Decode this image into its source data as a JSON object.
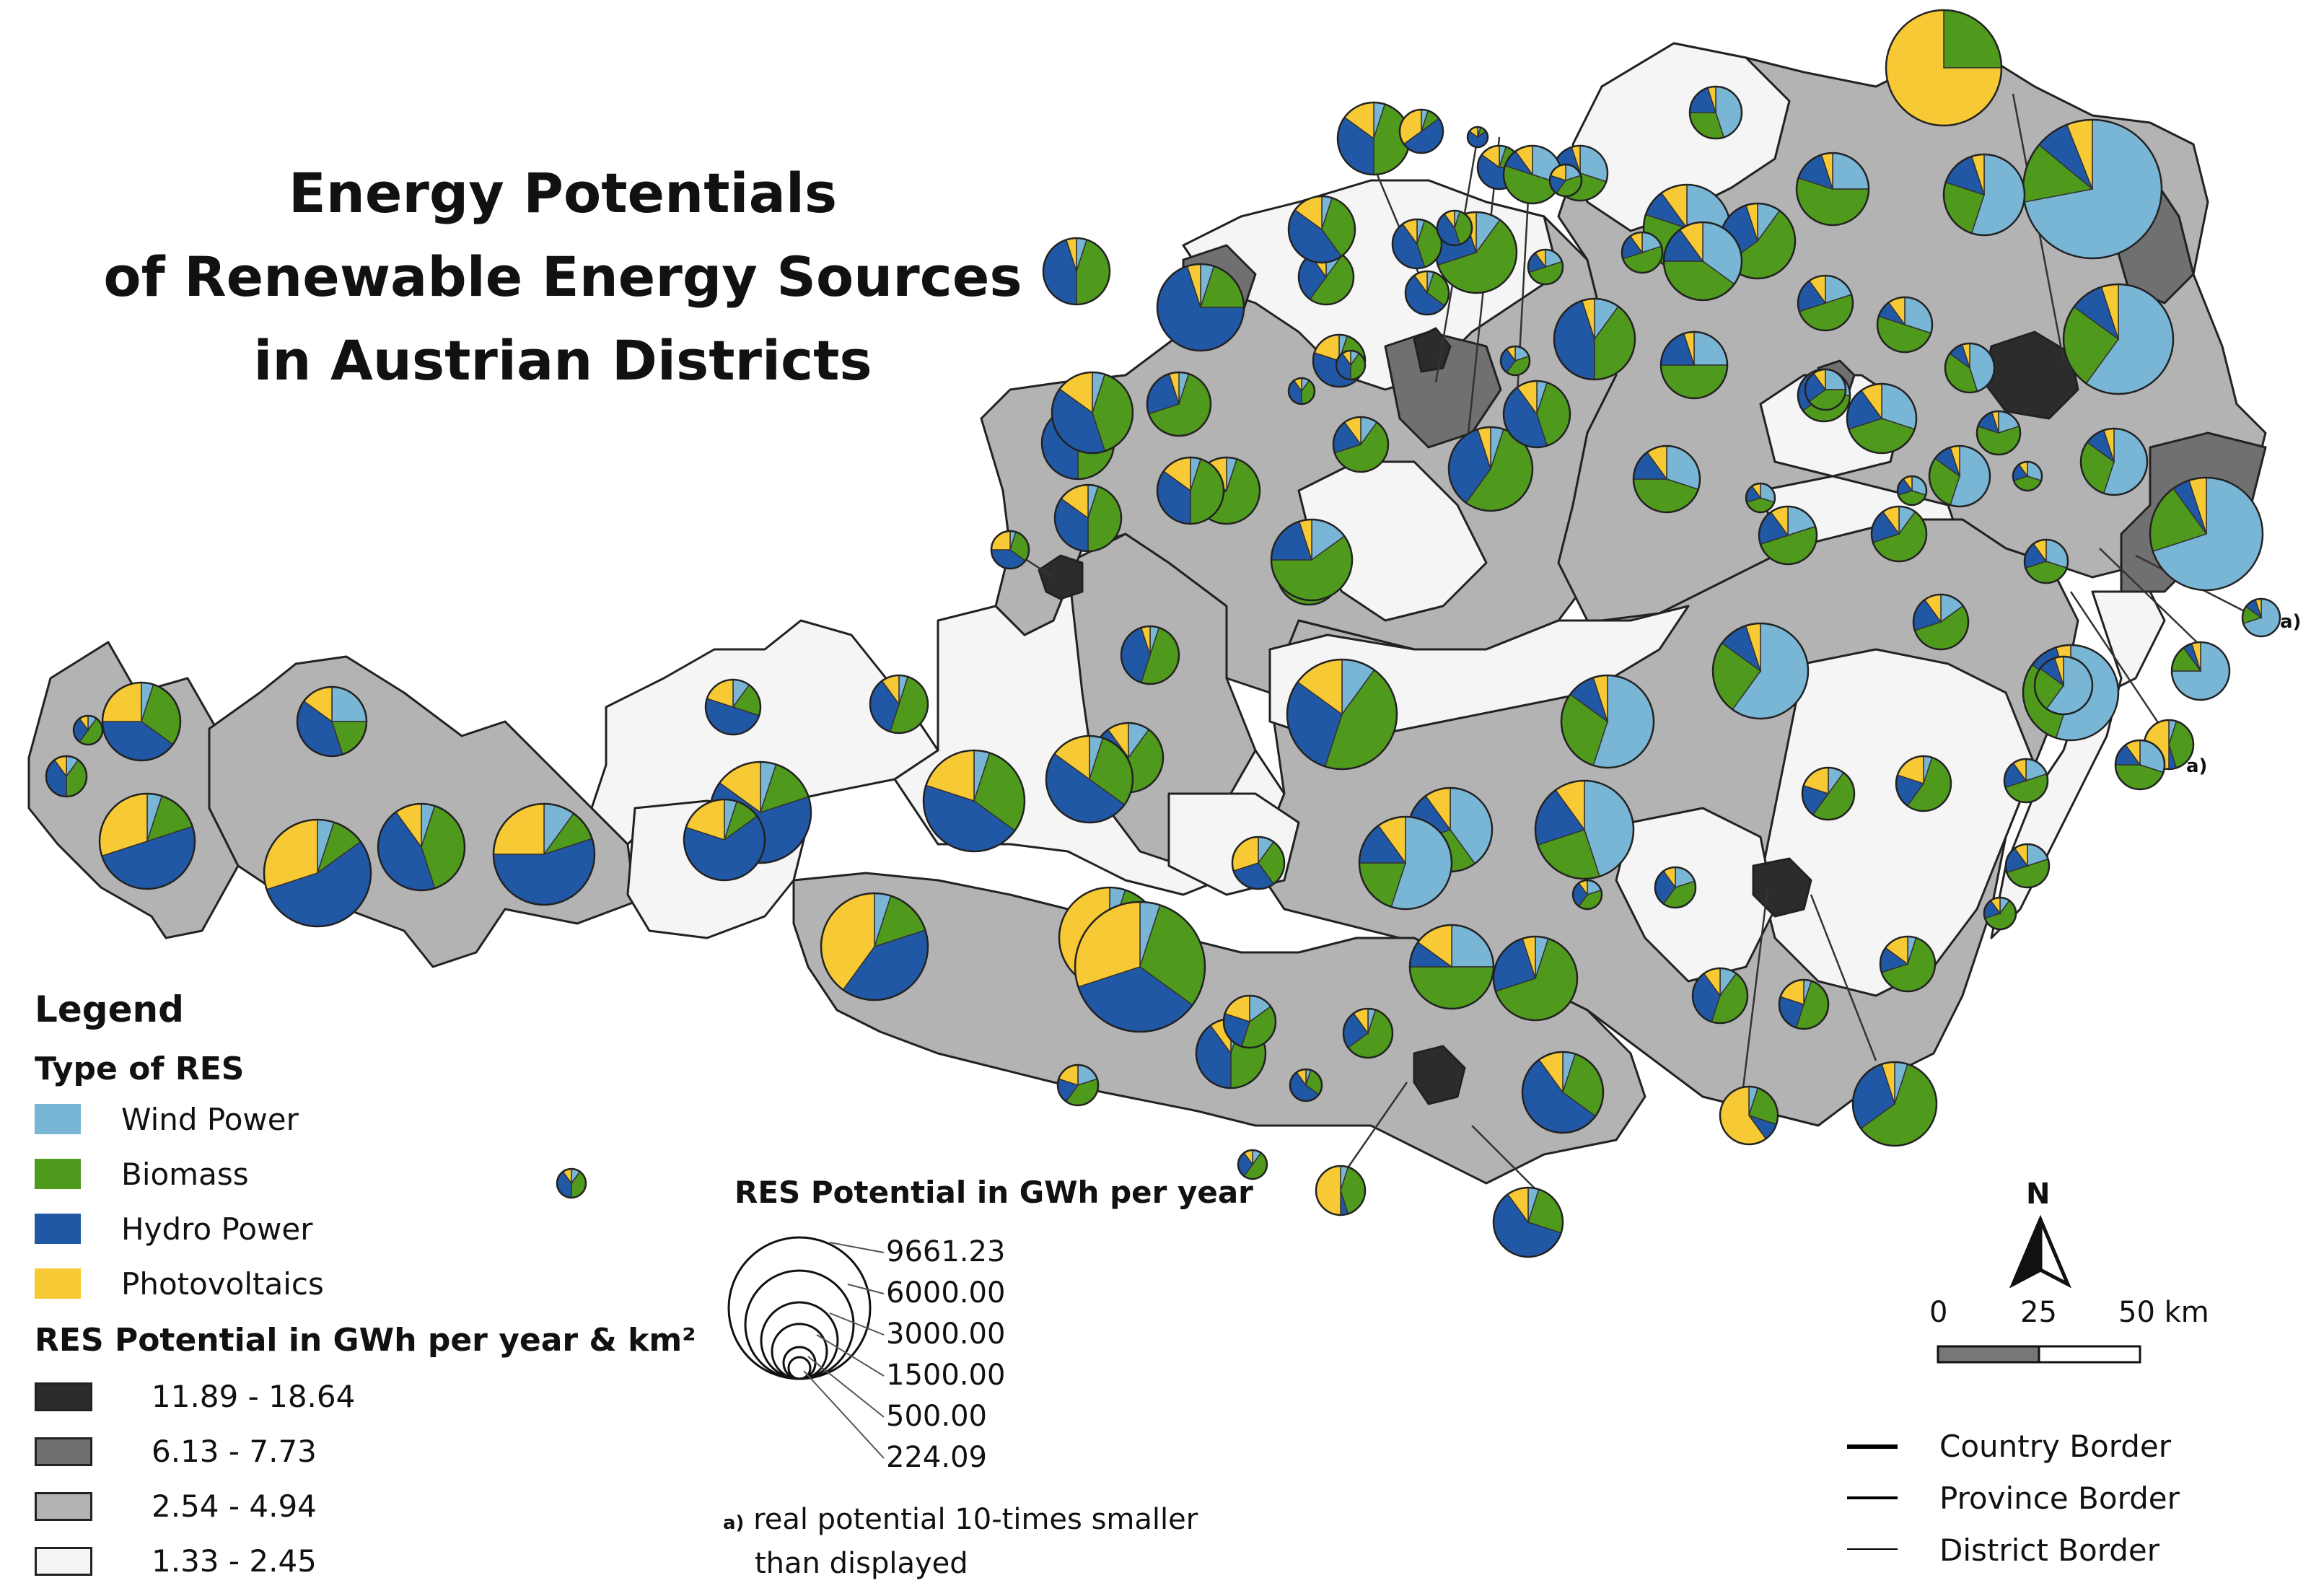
{
  "title_lines": [
    "Energy Potentials",
    "of Renewable Energy Sources",
    "in Austrian Districts"
  ],
  "legend": {
    "heading": "Legend",
    "type_heading": "Type of RES",
    "types": [
      {
        "label": "Wind Power",
        "color": "#79b6d6"
      },
      {
        "label": "Biomass",
        "color": "#4f9a1c"
      },
      {
        "label": "Hydro Power",
        "color": "#2158a6"
      },
      {
        "label": "Photovoltaics",
        "color": "#f7c934"
      }
    ],
    "density_heading": "RES Potential in GWh per year & km²",
    "density_classes": [
      {
        "label": "11.89 - 18.64",
        "color": "#2c2c2c"
      },
      {
        "label": "6.13 - 7.73",
        "color": "#707070"
      },
      {
        "label": "2.54 - 4.94",
        "color": "#b3b3b3"
      },
      {
        "label": "1.33 - 2.45",
        "color": "#f5f5f5"
      }
    ],
    "size_heading": "RES Potential in GWh per year",
    "size_values": [
      "9661.23",
      "6000.00",
      "3000.00",
      "1500.00",
      "500.00",
      "224.09"
    ],
    "note_marker": "a)",
    "note_lines": [
      "real potential 10-times smaller",
      "than displayed"
    ]
  },
  "north_label": "N",
  "scale": {
    "ticks": [
      "0",
      "25",
      "50 km"
    ]
  },
  "borders": [
    "Country Border",
    "Province Border",
    "District Border"
  ],
  "pie_marker": "a)"
}
